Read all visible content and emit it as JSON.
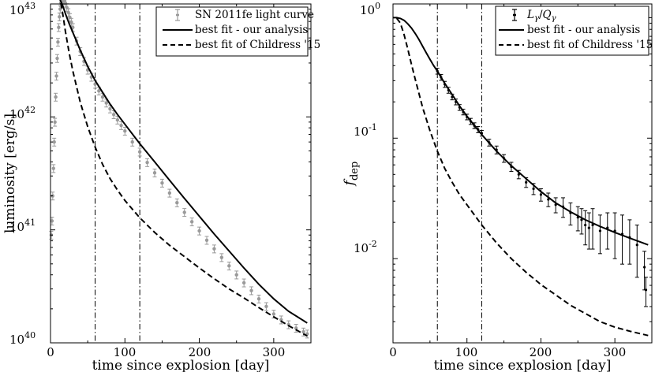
{
  "chart_data": [
    {
      "type": "line",
      "xlabel": "time since explosion [day]",
      "ylabel": "luminosity [erg/s]",
      "xlim": [
        0,
        350
      ],
      "ylim": [
        1e+40,
        1e+43
      ],
      "yscale": "log",
      "grid": false,
      "legend_position": "top-right",
      "x_ticks": [
        "0",
        "100",
        "200",
        "300"
      ],
      "y_ticks": [
        {
          "base": "10",
          "exp": "40"
        },
        {
          "base": "10",
          "exp": "41"
        },
        {
          "base": "10",
          "exp": "42"
        },
        {
          "base": "10",
          "exp": "43"
        }
      ],
      "vlines": [
        60,
        120
      ],
      "series": [
        {
          "name": "SN 2011fe light curve",
          "style": "gray-errorbars",
          "color": "#9a9a9a",
          "x": [
            1,
            2,
            3,
            4,
            5,
            6,
            7,
            8,
            9,
            10,
            11,
            12,
            13,
            14,
            15,
            16,
            17,
            18,
            19,
            20,
            22,
            24,
            26,
            28,
            30,
            35,
            40,
            45,
            50,
            55,
            60,
            65,
            70,
            75,
            80,
            85,
            90,
            95,
            100,
            110,
            120,
            130,
            140,
            150,
            160,
            170,
            180,
            190,
            200,
            210,
            220,
            230,
            240,
            250,
            260,
            270,
            280,
            290,
            300,
            310,
            320,
            330,
            340,
            345
          ],
          "y": [
            9e+40,
            1.2e+41,
            2e+41,
            3.5e+41,
            6e+41,
            9e+41,
            1.5e+42,
            2.3e+42,
            3.3e+42,
            4.6e+42,
            6.2e+42,
            7.7e+42,
            9e+42,
            1.03e+43,
            1.08e+43,
            1.12e+43,
            1.12e+43,
            1.1e+43,
            1.07e+43,
            1.02e+43,
            9.3e+42,
            8.4e+42,
            7.6e+42,
            6.9e+42,
            6.2e+42,
            4.7e+42,
            3.8e+42,
            3.1e+42,
            2.6e+42,
            2.25e+42,
            1.95e+42,
            1.7e+42,
            1.5e+42,
            1.33e+42,
            1.18e+42,
            1.05e+42,
            9.4e+41,
            8.4e+41,
            7.5e+41,
            6e+41,
            4.9e+41,
            3.95e+41,
            3.2e+41,
            2.6e+41,
            2.12e+41,
            1.74e+41,
            1.43e+41,
            1.18e+41,
            9.8e+40,
            8.1e+40,
            6.8e+40,
            5.7e+40,
            4.8e+40,
            4e+40,
            3.4e+40,
            2.9e+40,
            2.45e+40,
            2.1e+40,
            1.8e+40,
            1.6e+40,
            1.45e+40,
            1.35e+40,
            1.25e+40,
            1.2e+40
          ]
        },
        {
          "name": "best fit - our analysis",
          "style": "solid",
          "color": "#000000",
          "x": [
            10,
            12,
            14,
            16,
            18,
            20,
            25,
            30,
            40,
            50,
            60,
            70,
            80,
            90,
            100,
            120,
            140,
            160,
            180,
            200,
            220,
            240,
            260,
            280,
            300,
            320,
            345
          ],
          "y": [
            1.2e+43,
            1.12e+43,
            1.05e+43,
            9.8e+42,
            9e+42,
            8.2e+42,
            6.7e+42,
            5.6e+42,
            3.9e+42,
            2.8e+42,
            2.1e+42,
            1.65e+42,
            1.3e+42,
            1.05e+42,
            8.6e+41,
            5.8e+41,
            4e+41,
            2.75e+41,
            1.9e+41,
            1.32e+41,
            9.2e+40,
            6.5e+40,
            4.6e+40,
            3.3e+40,
            2.45e+40,
            1.9e+40,
            1.5e+40
          ]
        },
        {
          "name": "best fit of Childress '15",
          "style": "dashed",
          "color": "#000000",
          "x": [
            14,
            16,
            18,
            20,
            25,
            30,
            40,
            50,
            60,
            70,
            80,
            90,
            100,
            120,
            140,
            160,
            180,
            200,
            220,
            240,
            260,
            280,
            300,
            320,
            345
          ],
          "y": [
            1.02e+43,
            8.5e+42,
            7e+42,
            5.7e+42,
            3.7e+42,
            2.55e+42,
            1.35e+42,
            8.2e+41,
            5.4e+41,
            3.8e+41,
            2.85e+41,
            2.25e+41,
            1.82e+41,
            1.28e+41,
            9.5e+40,
            7.3e+40,
            5.8e+40,
            4.6e+40,
            3.7e+40,
            3e+40,
            2.5e+40,
            2.05e+40,
            1.7e+40,
            1.42e+40,
            1.15e+40
          ]
        }
      ]
    },
    {
      "type": "line",
      "xlabel": "time since explosion [day]",
      "ylabel": {
        "main": "f",
        "sub": "dep"
      },
      "xlim": [
        0,
        350
      ],
      "ylim": [
        0.002,
        1.3
      ],
      "yscale": "log",
      "grid": false,
      "legend_position": "top-right",
      "x_ticks": [
        "0",
        "100",
        "200",
        "300"
      ],
      "y_ticks": [
        {
          "base": "10",
          "exp": "0"
        },
        {
          "base": "10",
          "exp": "-1"
        },
        {
          "base": "10",
          "exp": "-2"
        }
      ],
      "vlines": [
        60,
        120
      ],
      "series": [
        {
          "name": "Lγ/Qγ",
          "legend_label": {
            "a": "L",
            "a_sub": "γ",
            "slash": "/",
            "b": "Q",
            "b_sub": "γ"
          },
          "style": "errorbars",
          "color": "#000000",
          "x": [
            60,
            65,
            70,
            75,
            80,
            85,
            90,
            95,
            100,
            105,
            110,
            115,
            120,
            130,
            140,
            150,
            160,
            170,
            180,
            190,
            200,
            210,
            220,
            230,
            240,
            250,
            255,
            260,
            265,
            270,
            280,
            290,
            300,
            310,
            320,
            330,
            340,
            342
          ],
          "y": [
            0.36,
            0.32,
            0.28,
            0.25,
            0.22,
            0.2,
            0.18,
            0.165,
            0.15,
            0.138,
            0.127,
            0.118,
            0.11,
            0.092,
            0.08,
            0.068,
            0.058,
            0.05,
            0.043,
            0.038,
            0.034,
            0.031,
            0.028,
            0.027,
            0.024,
            0.022,
            0.021,
            0.019,
            0.018,
            0.019,
            0.017,
            0.018,
            0.017,
            0.016,
            0.015,
            0.013,
            0.0085,
            0.0055
          ],
          "yerr": [
            0.02,
            0.018,
            0.016,
            0.014,
            0.012,
            0.011,
            0.01,
            0.009,
            0.008,
            0.008,
            0.007,
            0.007,
            0.006,
            0.006,
            0.006,
            0.005,
            0.005,
            0.004,
            0.004,
            0.004,
            0.004,
            0.004,
            0.004,
            0.005,
            0.005,
            0.005,
            0.005,
            0.006,
            0.006,
            0.007,
            0.006,
            0.006,
            0.007,
            0.007,
            0.006,
            0.006,
            0.003,
            0.0015
          ]
        },
        {
          "name": "best fit - our analysis",
          "style": "solid",
          "color": "#000000",
          "x": [
            0,
            5,
            10,
            15,
            20,
            25,
            30,
            35,
            40,
            45,
            50,
            55,
            60,
            70,
            80,
            90,
            100,
            120,
            140,
            160,
            180,
            200,
            220,
            240,
            260,
            280,
            300,
            320,
            345
          ],
          "y": [
            1.0,
            1.0,
            0.985,
            0.95,
            0.89,
            0.82,
            0.74,
            0.66,
            0.58,
            0.51,
            0.45,
            0.4,
            0.36,
            0.285,
            0.23,
            0.185,
            0.152,
            0.107,
            0.078,
            0.059,
            0.046,
            0.036,
            0.029,
            0.0245,
            0.021,
            0.0185,
            0.0165,
            0.0148,
            0.013
          ]
        },
        {
          "name": "best fit of Childress '15",
          "style": "dashed",
          "color": "#000000",
          "x": [
            5,
            10,
            15,
            20,
            25,
            30,
            40,
            50,
            60,
            70,
            80,
            90,
            100,
            120,
            140,
            160,
            180,
            200,
            220,
            240,
            260,
            280,
            300,
            320,
            345
          ],
          "y": [
            0.99,
            0.9,
            0.72,
            0.55,
            0.41,
            0.31,
            0.18,
            0.115,
            0.078,
            0.056,
            0.043,
            0.034,
            0.028,
            0.019,
            0.0135,
            0.01,
            0.0077,
            0.0061,
            0.005,
            0.0041,
            0.0035,
            0.003,
            0.0027,
            0.0025,
            0.0023
          ]
        }
      ]
    }
  ]
}
